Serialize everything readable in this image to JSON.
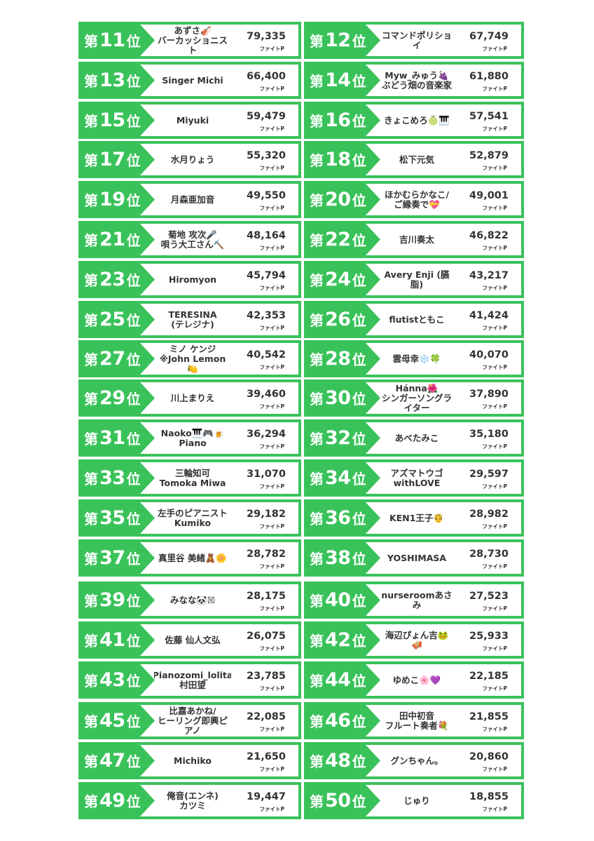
{
  "rank_prefix": "第",
  "rank_suffix": "位",
  "score_unit": "ファイトP",
  "colors": {
    "card_green": "#3ac25a",
    "panel_white": "#ffffff",
    "text_dark": "#333333"
  },
  "entries": [
    {
      "rank": "11",
      "name": "あずさ🎻\nバーカッショニスト",
      "score": "79,335"
    },
    {
      "rank": "12",
      "name": "コマンドポリショイ",
      "score": "67,749"
    },
    {
      "rank": "13",
      "name": "Singer Michi",
      "score": "66,400"
    },
    {
      "rank": "14",
      "name": "Myw_みゅう🍇\nぶどう畑の音楽家",
      "score": "61,880"
    },
    {
      "rank": "15",
      "name": "Miyuki",
      "score": "59,479"
    },
    {
      "rank": "16",
      "name": "きょこめろ🍈🎹",
      "score": "57,541"
    },
    {
      "rank": "17",
      "name": "水月りょう",
      "score": "55,320"
    },
    {
      "rank": "18",
      "name": "松下元気",
      "score": "52,879"
    },
    {
      "rank": "19",
      "name": "月森亜加音",
      "score": "49,550"
    },
    {
      "rank": "20",
      "name": "ほかむらかなこ/\nご縁奏で💝",
      "score": "49,001"
    },
    {
      "rank": "21",
      "name": "菊地 攻次🎤\n唄う大工さん🔨",
      "score": "48,164"
    },
    {
      "rank": "22",
      "name": "吉川奏太",
      "score": "46,822"
    },
    {
      "rank": "23",
      "name": "Hiromyon",
      "score": "45,794"
    },
    {
      "rank": "24",
      "name": "Avery Enji (臙脂)",
      "score": "43,217"
    },
    {
      "rank": "25",
      "name": "TERESINA\n(テレジナ)",
      "score": "42,353"
    },
    {
      "rank": "26",
      "name": "flutistともこ",
      "score": "41,424"
    },
    {
      "rank": "27",
      "name": "ミノ ケンジ\n※John Lemon🍋",
      "score": "40,542"
    },
    {
      "rank": "28",
      "name": "雲母幸❄️🍀",
      "score": "40,070"
    },
    {
      "rank": "29",
      "name": "川上まりえ",
      "score": "39,460"
    },
    {
      "rank": "30",
      "name": "Hánna🌺\nシンガーソングラ\nイター",
      "score": "37,890"
    },
    {
      "rank": "31",
      "name": "Naoko🎹🎮🍺\nPiano",
      "score": "36,294"
    },
    {
      "rank": "32",
      "name": "あべたみこ",
      "score": "35,180"
    },
    {
      "rank": "33",
      "name": "三輪知可\nTomoka Miwa",
      "score": "31,070"
    },
    {
      "rank": "34",
      "name": "アズマトウゴ\nwithLOVE",
      "score": "29,597"
    },
    {
      "rank": "35",
      "name": "左手のピアニスト\nKumiko",
      "score": "29,182"
    },
    {
      "rank": "36",
      "name": "KEN1王子🤴",
      "score": "28,982"
    },
    {
      "rank": "37",
      "name": "真里谷 美緒🧸🌼",
      "score": "28,782"
    },
    {
      "rank": "38",
      "name": "YOSHIMASA",
      "score": "28,730"
    },
    {
      "rank": "39",
      "name": "みなな🐼☒",
      "score": "28,175"
    },
    {
      "rank": "40",
      "name": "nurseroomあさみ",
      "score": "27,523"
    },
    {
      "rank": "41",
      "name": "佐藤 仙人文弘",
      "score": "26,075"
    },
    {
      "rank": "42",
      "name": "海辺ぴょん吉🐸🪗",
      "score": "25,933"
    },
    {
      "rank": "43",
      "name": "Pianozomi_lolita\n村田望",
      "score": "23,785"
    },
    {
      "rank": "44",
      "name": "ゆめこ🌸💜",
      "score": "22,185"
    },
    {
      "rank": "45",
      "name": "比嘉あかね/\nヒーリング即興ピアノ",
      "score": "22,085"
    },
    {
      "rank": "46",
      "name": "田中初音\nフルート奏者💐",
      "score": "21,855"
    },
    {
      "rank": "47",
      "name": "Michiko",
      "score": "21,650"
    },
    {
      "rank": "48",
      "name": "グンちゃん。",
      "score": "20,860"
    },
    {
      "rank": "49",
      "name": "俺音(エンネ)\nカツミ",
      "score": "19,447"
    },
    {
      "rank": "50",
      "name": "じゅり",
      "score": "18,855"
    }
  ]
}
